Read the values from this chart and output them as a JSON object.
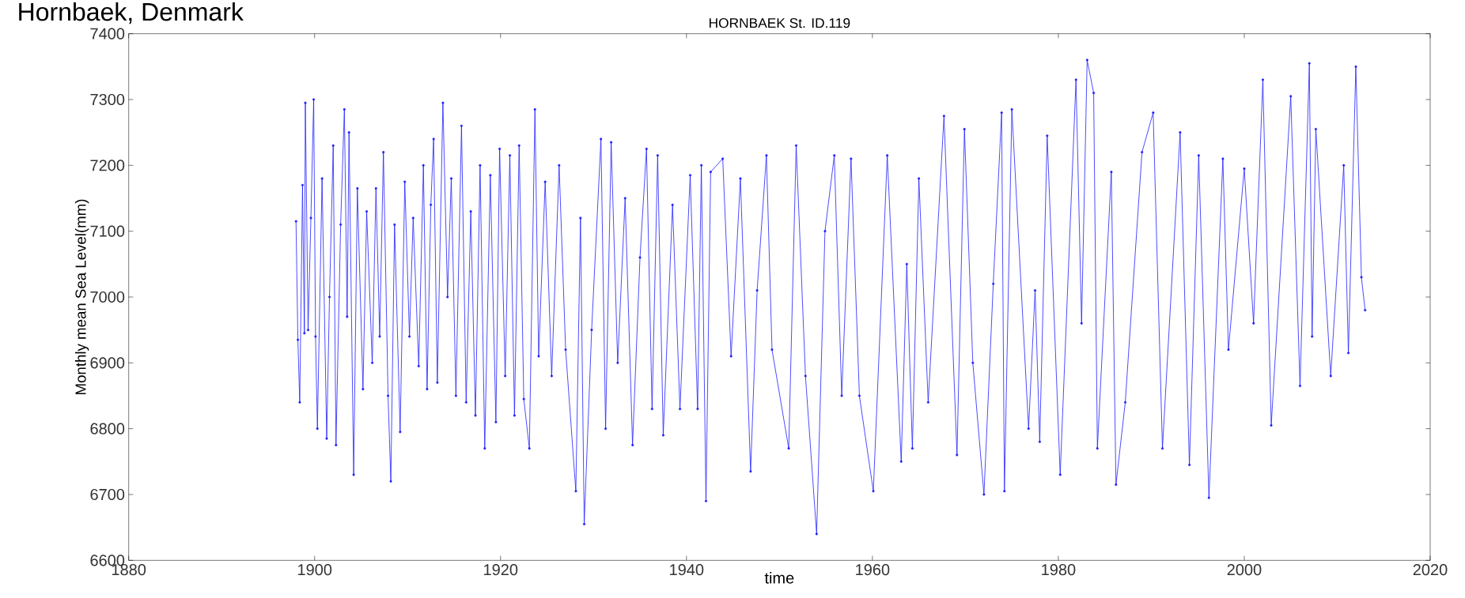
{
  "chart_data": {
    "type": "line",
    "title": "Hornbaek, Denmark",
    "subtitle": "HORNBAEK St. ID.119",
    "xlabel": "time",
    "ylabel": "Monthly mean Sea Level(mm)",
    "x": [
      1898.0,
      1898.2,
      1898.4,
      1898.7,
      1898.9,
      1899.0,
      1899.3,
      1899.6,
      1899.9,
      1900.1,
      1900.3,
      1900.8,
      1901.3,
      1901.6,
      1902.0,
      1902.3,
      1902.8,
      1903.2,
      1903.5,
      1903.7,
      1904.2,
      1904.6,
      1905.2,
      1905.6,
      1906.2,
      1906.6,
      1907.0,
      1907.4,
      1907.9,
      1908.2,
      1908.6,
      1909.2,
      1909.7,
      1910.2,
      1910.6,
      1911.2,
      1911.7,
      1912.1,
      1912.5,
      1912.8,
      1913.2,
      1913.8,
      1914.3,
      1914.7,
      1915.2,
      1915.8,
      1916.3,
      1916.8,
      1917.3,
      1917.8,
      1918.3,
      1918.9,
      1919.5,
      1919.9,
      1920.5,
      1921.0,
      1921.5,
      1922.0,
      1922.5,
      1923.1,
      1923.7,
      1924.1,
      1924.8,
      1925.5,
      1926.3,
      1927.0,
      1928.1,
      1928.6,
      1929.0,
      1929.8,
      1930.8,
      1931.3,
      1931.9,
      1932.6,
      1933.4,
      1934.2,
      1935.0,
      1935.7,
      1936.3,
      1936.9,
      1937.5,
      1938.5,
      1939.3,
      1940.4,
      1941.2,
      1941.6,
      1942.1,
      1942.6,
      1943.9,
      1944.8,
      1945.8,
      1946.9,
      1947.6,
      1948.6,
      1949.2,
      1951.0,
      1951.8,
      1952.8,
      1954.0,
      1954.9,
      1955.9,
      1956.7,
      1957.7,
      1958.6,
      1960.1,
      1961.6,
      1963.1,
      1963.7,
      1964.3,
      1965.0,
      1966.0,
      1967.7,
      1969.1,
      1969.9,
      1970.8,
      1972.0,
      1973.0,
      1973.9,
      1974.2,
      1975.0,
      1976.8,
      1977.5,
      1978.0,
      1978.8,
      1980.2,
      1981.9,
      1982.5,
      1983.1,
      1983.8,
      1984.2,
      1985.7,
      1986.2,
      1987.2,
      1989.0,
      1990.2,
      1991.2,
      1993.1,
      1994.1,
      1995.1,
      1996.2,
      1997.7,
      1998.3,
      2000.0,
      2001.0,
      2002.0,
      2002.9,
      2005.0,
      2006.0,
      2007.0,
      2007.3,
      2007.7,
      2009.3,
      2010.7,
      2011.2,
      2012.0,
      2012.6,
      2013.0
    ],
    "series": [
      {
        "color": "#2020ff",
        "values": [
          7115,
          6935,
          6840,
          7170,
          6945,
          7295,
          6950,
          7120,
          7300,
          6940,
          6800,
          7180,
          6785,
          7000,
          7230,
          6775,
          7110,
          7285,
          6970,
          7250,
          6730,
          7165,
          6860,
          7130,
          6900,
          7165,
          6940,
          7220,
          6850,
          6720,
          7110,
          6795,
          7175,
          6940,
          7120,
          6895,
          7200,
          6860,
          7140,
          7240,
          6870,
          7295,
          7000,
          7180,
          6850,
          7260,
          6840,
          7130,
          6820,
          7200,
          6770,
          7185,
          6810,
          7225,
          6880,
          7215,
          6820,
          7230,
          6845,
          6770,
          7285,
          6910,
          7175,
          6880,
          7200,
          6920,
          6705,
          7120,
          6655,
          6950,
          7240,
          6800,
          7235,
          6900,
          7150,
          6775,
          7060,
          7225,
          6830,
          7215,
          6790,
          7140,
          6830,
          7185,
          6830,
          7200,
          6690,
          7190,
          7210,
          6910,
          7180,
          6735,
          7010,
          7215,
          6920,
          6770,
          7230,
          6880,
          6640,
          7100,
          7215,
          6850,
          7210,
          6850,
          6705,
          7215,
          6750,
          7050,
          6770,
          7180,
          6840,
          7275,
          6760,
          7255,
          6900,
          6700,
          7020,
          7280,
          6705,
          7285,
          6800,
          7010,
          6780,
          7245,
          6730,
          7330,
          6960,
          7360,
          7310,
          6770,
          7190,
          6715,
          6840,
          7220,
          7280,
          6770,
          7250,
          6745,
          7215,
          6695,
          7210,
          6920,
          7195,
          6960,
          7330,
          6805,
          7305,
          6865,
          7355,
          6940,
          7255,
          6880,
          7200,
          6915,
          7350,
          7030,
          6980
        ]
      }
    ],
    "xlim": [
      1880,
      2020
    ],
    "xticks": [
      1880,
      1900,
      1920,
      1940,
      1960,
      1980,
      2000,
      2020
    ],
    "ylim": [
      6600,
      7400
    ],
    "yticks": [
      6600,
      6700,
      6800,
      6900,
      7000,
      7100,
      7200,
      7300,
      7400
    ],
    "marker": "circle",
    "line_style": "solid"
  }
}
